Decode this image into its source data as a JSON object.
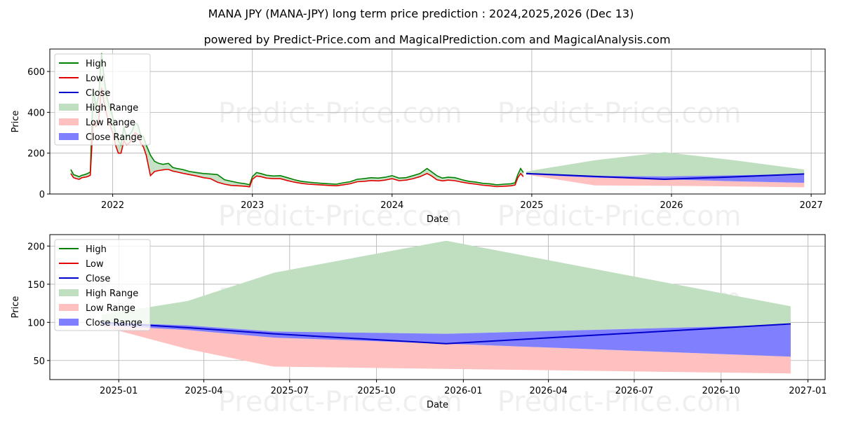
{
  "title": "MANA JPY (MANA-JPY) long term price prediction : 2024,2025,2026 (Dec 13)",
  "subtitle": "powered by Predict-Price.com and MagicalPrediction.com and MagicalAnalysis.com",
  "watermark": "Predict-Price.com",
  "colors": {
    "high": "#008000",
    "low": "#e00000",
    "close": "#0000cc",
    "high_range": "#c0dfc0",
    "low_range": "#ffc0c0",
    "close_range": "#8080ff"
  },
  "chart_data": [
    {
      "type": "line",
      "title": "long term overview",
      "xlabel": "Date",
      "ylabel": "Price",
      "xlim": [
        2021.55,
        2027.1
      ],
      "ylim": [
        0,
        710
      ],
      "x_ticks": [
        2022,
        2023,
        2024,
        2025,
        2026,
        2027
      ],
      "x_tick_labels": [
        "2022",
        "2023",
        "2024",
        "2025",
        "2026",
        "2027"
      ],
      "y_ticks": [
        0,
        200,
        400,
        600
      ],
      "y_tick_labels": [
        "0",
        "200",
        "400",
        "600"
      ],
      "grid": true,
      "legend": {
        "position": "top-left",
        "entries": [
          "High",
          "Low",
          "Close",
          "High Range",
          "Low Range",
          "Close Range"
        ]
      },
      "history": {
        "x": [
          2021.7,
          2021.72,
          2021.74,
          2021.76,
          2021.78,
          2021.8,
          2021.82,
          2021.84,
          2021.86,
          2021.88,
          2021.9,
          2021.92,
          2021.94,
          2021.96,
          2021.98,
          2022.0,
          2022.02,
          2022.04,
          2022.06,
          2022.08,
          2022.1,
          2022.12,
          2022.14,
          2022.16,
          2022.18,
          2022.2,
          2022.22,
          2022.24,
          2022.27,
          2022.3,
          2022.33,
          2022.36,
          2022.38,
          2022.4,
          2022.43,
          2022.46,
          2022.5,
          2022.55,
          2022.6,
          2022.65,
          2022.7,
          2022.75,
          2022.8,
          2022.85,
          2022.9,
          2022.95,
          2022.98,
          2023.0,
          2023.03,
          2023.06,
          2023.1,
          2023.15,
          2023.2,
          2023.25,
          2023.3,
          2023.35,
          2023.4,
          2023.45,
          2023.5,
          2023.55,
          2023.6,
          2023.65,
          2023.7,
          2023.75,
          2023.8,
          2023.85,
          2023.9,
          2023.95,
          2024.0,
          2024.05,
          2024.1,
          2024.15,
          2024.2,
          2024.25,
          2024.28,
          2024.32,
          2024.36,
          2024.4,
          2024.45,
          2024.5,
          2024.55,
          2024.6,
          2024.65,
          2024.7,
          2024.75,
          2024.8,
          2024.85,
          2024.88,
          2024.9,
          2024.92,
          2024.94
        ],
        "high": [
          120,
          95,
          90,
          85,
          92,
          95,
          100,
          108,
          520,
          430,
          480,
          690,
          560,
          470,
          420,
          380,
          300,
          260,
          240,
          330,
          280,
          290,
          310,
          350,
          340,
          290,
          280,
          240,
          190,
          160,
          150,
          145,
          148,
          150,
          130,
          125,
          120,
          110,
          105,
          100,
          98,
          95,
          70,
          62,
          55,
          50,
          45,
          85,
          105,
          100,
          92,
          88,
          90,
          80,
          70,
          62,
          58,
          55,
          52,
          50,
          48,
          55,
          60,
          72,
          75,
          80,
          78,
          82,
          90,
          78,
          80,
          90,
          100,
          125,
          110,
          90,
          78,
          82,
          80,
          70,
          62,
          58,
          52,
          50,
          45,
          48,
          50,
          55,
          95,
          125,
          105
        ],
        "low": [
          100,
          80,
          75,
          72,
          80,
          82,
          85,
          92,
          350,
          330,
          360,
          520,
          440,
          380,
          340,
          300,
          240,
          200,
          200,
          260,
          240,
          250,
          270,
          300,
          290,
          250,
          230,
          190,
          90,
          110,
          115,
          118,
          120,
          120,
          112,
          108,
          102,
          95,
          88,
          80,
          75,
          58,
          48,
          42,
          40,
          38,
          35,
          72,
          88,
          85,
          78,
          75,
          75,
          66,
          58,
          52,
          48,
          46,
          44,
          42,
          40,
          45,
          50,
          60,
          62,
          66,
          64,
          68,
          75,
          65,
          68,
          75,
          85,
          100,
          90,
          70,
          64,
          68,
          65,
          58,
          52,
          48,
          43,
          40,
          36,
          38,
          40,
          44,
          80,
          100,
          85
        ]
      },
      "forecast": {
        "x": [
          2024.96,
          2025.45,
          2025.95,
          2026.45,
          2026.95
        ],
        "high_range": [
          110,
          165,
          205,
          165,
          120
        ],
        "low_range": [
          95,
          42,
          40,
          37,
          33
        ],
        "close_upper": [
          100,
          88,
          86,
          92,
          98
        ],
        "close_lower": [
          96,
          80,
          72,
          62,
          55
        ],
        "close": [
          100,
          86,
          72,
          84,
          98
        ]
      }
    },
    {
      "type": "line",
      "title": "forecast detail",
      "xlabel": "Date",
      "ylabel": "Price",
      "xlim": [
        2024.8,
        2027.05
      ],
      "ylim": [
        25,
        215
      ],
      "x_ticks": [
        2025.0,
        2025.247,
        2025.496,
        2025.748,
        2026.0,
        2026.247,
        2026.496,
        2026.748,
        2027.0
      ],
      "x_tick_labels": [
        "2025-01",
        "2025-04",
        "2025-07",
        "2025-10",
        "2026-01",
        "2026-04",
        "2026-07",
        "2026-10",
        "2027-01"
      ],
      "y_ticks": [
        50,
        100,
        150,
        200
      ],
      "y_tick_labels": [
        "50",
        "100",
        "150",
        "200"
      ],
      "grid": true,
      "legend": {
        "position": "top-left",
        "entries": [
          "High",
          "Low",
          "Close",
          "High Range",
          "Low Range",
          "Close Range"
        ]
      },
      "forecast": {
        "x": [
          2024.95,
          2025.2,
          2025.45,
          2025.95,
          2026.95
        ],
        "high_range": [
          110,
          128,
          165,
          207,
          121
        ],
        "low_range": [
          95,
          65,
          42,
          39,
          33
        ],
        "close_upper": [
          100,
          96,
          88,
          85,
          97
        ],
        "close_lower": [
          96,
          90,
          80,
          72,
          55
        ],
        "close": [
          100,
          93,
          85,
          72,
          98
        ]
      }
    }
  ]
}
